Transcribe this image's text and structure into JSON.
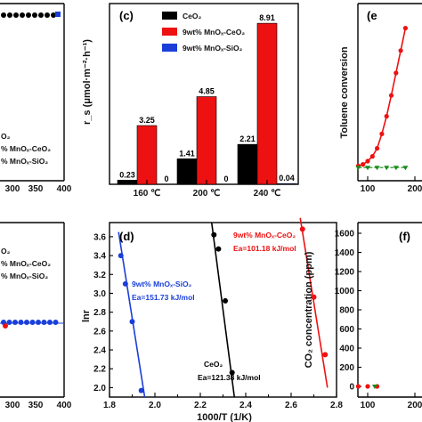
{
  "colors": {
    "ceo2": "#000000",
    "mn_ceo2": "#ee1111",
    "mn_sio2": "#1a3fd9",
    "green": "#1a8c1a"
  },
  "chart_data": [
    {
      "id": "c",
      "type": "bar",
      "panel_label": "(c)",
      "ylabel": "r_s (μmol·m⁻²·h⁻¹)",
      "categories": [
        "160 ℃",
        "200 ℃",
        "240 ℃"
      ],
      "legend": [
        "CeO₂",
        "9wt% MnOₓ-CeO₂",
        "9wt% MnOₓ-SiO₂"
      ],
      "legend_position": "top-left",
      "series": [
        {
          "name": "CeO₂",
          "values": [
            0.23,
            1.41,
            2.21
          ],
          "labels": [
            "0.23",
            "1.41",
            "2.21"
          ]
        },
        {
          "name": "9wt% MnOₓ-CeO₂",
          "values": [
            3.25,
            4.85,
            8.91
          ],
          "labels": [
            "3.25",
            "4.85",
            "8.91"
          ]
        },
        {
          "name": "9wt% MnOₓ-SiO₂",
          "values": [
            0,
            0,
            0.04
          ],
          "labels": [
            "0",
            "0",
            "0.04"
          ]
        }
      ],
      "ylim": [
        0,
        10
      ]
    },
    {
      "id": "d",
      "type": "scatter",
      "panel_label": "(d)",
      "xlabel": "1000/T (1/K)",
      "ylabel": "lnr",
      "xlim": [
        1.8,
        2.8
      ],
      "ylim": [
        1.9,
        3.75
      ],
      "xticks": [
        "1.8",
        "1.9",
        "2.0",
        "2.1",
        "2.2",
        "2.3",
        "2.4",
        "2.5",
        "2.6",
        "2.7",
        "2.8"
      ],
      "yticks": [
        "2.0",
        "2.2",
        "2.4",
        "2.6",
        "2.8",
        "3.0",
        "3.2",
        "3.4",
        "3.6"
      ],
      "series": [
        {
          "name": "9wt% MnOₓ-SiO₂",
          "annotation": "Ea=151.73 kJ/mol",
          "x": [
            1.85,
            1.87,
            1.9,
            1.94
          ],
          "y": [
            3.4,
            3.1,
            2.7,
            1.97
          ],
          "fit": [
            [
              1.84,
              3.65
            ],
            [
              1.955,
              1.9
            ]
          ]
        },
        {
          "name": "CeO₂",
          "annotation": "Ea=121.38 kJ/mol",
          "x": [
            2.26,
            2.28,
            2.31,
            2.34
          ],
          "y": [
            3.62,
            3.47,
            2.92,
            2.16
          ],
          "fit": [
            [
              2.25,
              3.75
            ],
            [
              2.35,
              1.9
            ]
          ]
        },
        {
          "name": "9wt% MnOₓ-CeO₂",
          "annotation": "Ea=101.18 kJ/mol",
          "x": [
            2.65,
            2.7,
            2.75
          ],
          "y": [
            3.68,
            2.96,
            2.35
          ],
          "fit": [
            [
              2.64,
              3.8
            ],
            [
              2.76,
              2.0
            ]
          ]
        }
      ]
    },
    {
      "id": "e",
      "type": "line",
      "panel_label": "(e",
      "ylabel": "Toluene conversion",
      "xticks": [
        "100",
        "200"
      ],
      "series": [
        {
          "name": "9wt% MnOₓ-CeO₂",
          "x": [
            80,
            90,
            100,
            110,
            120,
            130,
            140,
            150,
            160,
            170,
            180
          ],
          "y": [
            0.02,
            0.03,
            0.05,
            0.08,
            0.13,
            0.22,
            0.33,
            0.46,
            0.6,
            0.74,
            0.88
          ]
        },
        {
          "name": "9wt% MnOₓ-SiO₂",
          "x": [
            80,
            100,
            120,
            140,
            160,
            180
          ],
          "y": [
            0.01,
            0.01,
            0.01,
            0.01,
            0.01,
            0.01
          ]
        }
      ]
    },
    {
      "id": "f",
      "type": "line",
      "panel_label": "(f)",
      "ylabel": "CO₂ concentration (ppm)",
      "ylim": [
        0,
        1600
      ],
      "yticks": [
        "0",
        "200",
        "400",
        "600",
        "800",
        "1000",
        "1200",
        "1400",
        "1600"
      ],
      "xticks": [
        "100",
        "200"
      ],
      "series": [
        {
          "name": "9wt% MnOₓ-CeO₂",
          "x": [
            80,
            100,
            120
          ],
          "y": [
            0,
            0,
            0
          ]
        }
      ]
    },
    {
      "id": "a",
      "type": "line",
      "xticks": [
        "300",
        "350",
        "400"
      ],
      "legend": [
        "O₂",
        "% MnOₓ-CeO₂",
        "% MnOₓ-SiO₂"
      ],
      "series": [
        {
          "name": "partial series",
          "x": [
            0,
            370
          ],
          "y": [
            0,
            0
          ]
        }
      ]
    },
    {
      "id": "b",
      "type": "line",
      "xticks": [
        "300",
        "350",
        "400"
      ],
      "legend": [
        "O₂",
        "% MnOₓ-CeO₂",
        "% MnOₓ-SiO₂"
      ],
      "series": [
        {
          "name": "partial series",
          "x": [
            0,
            370
          ],
          "y": [
            0,
            0
          ]
        }
      ]
    }
  ]
}
